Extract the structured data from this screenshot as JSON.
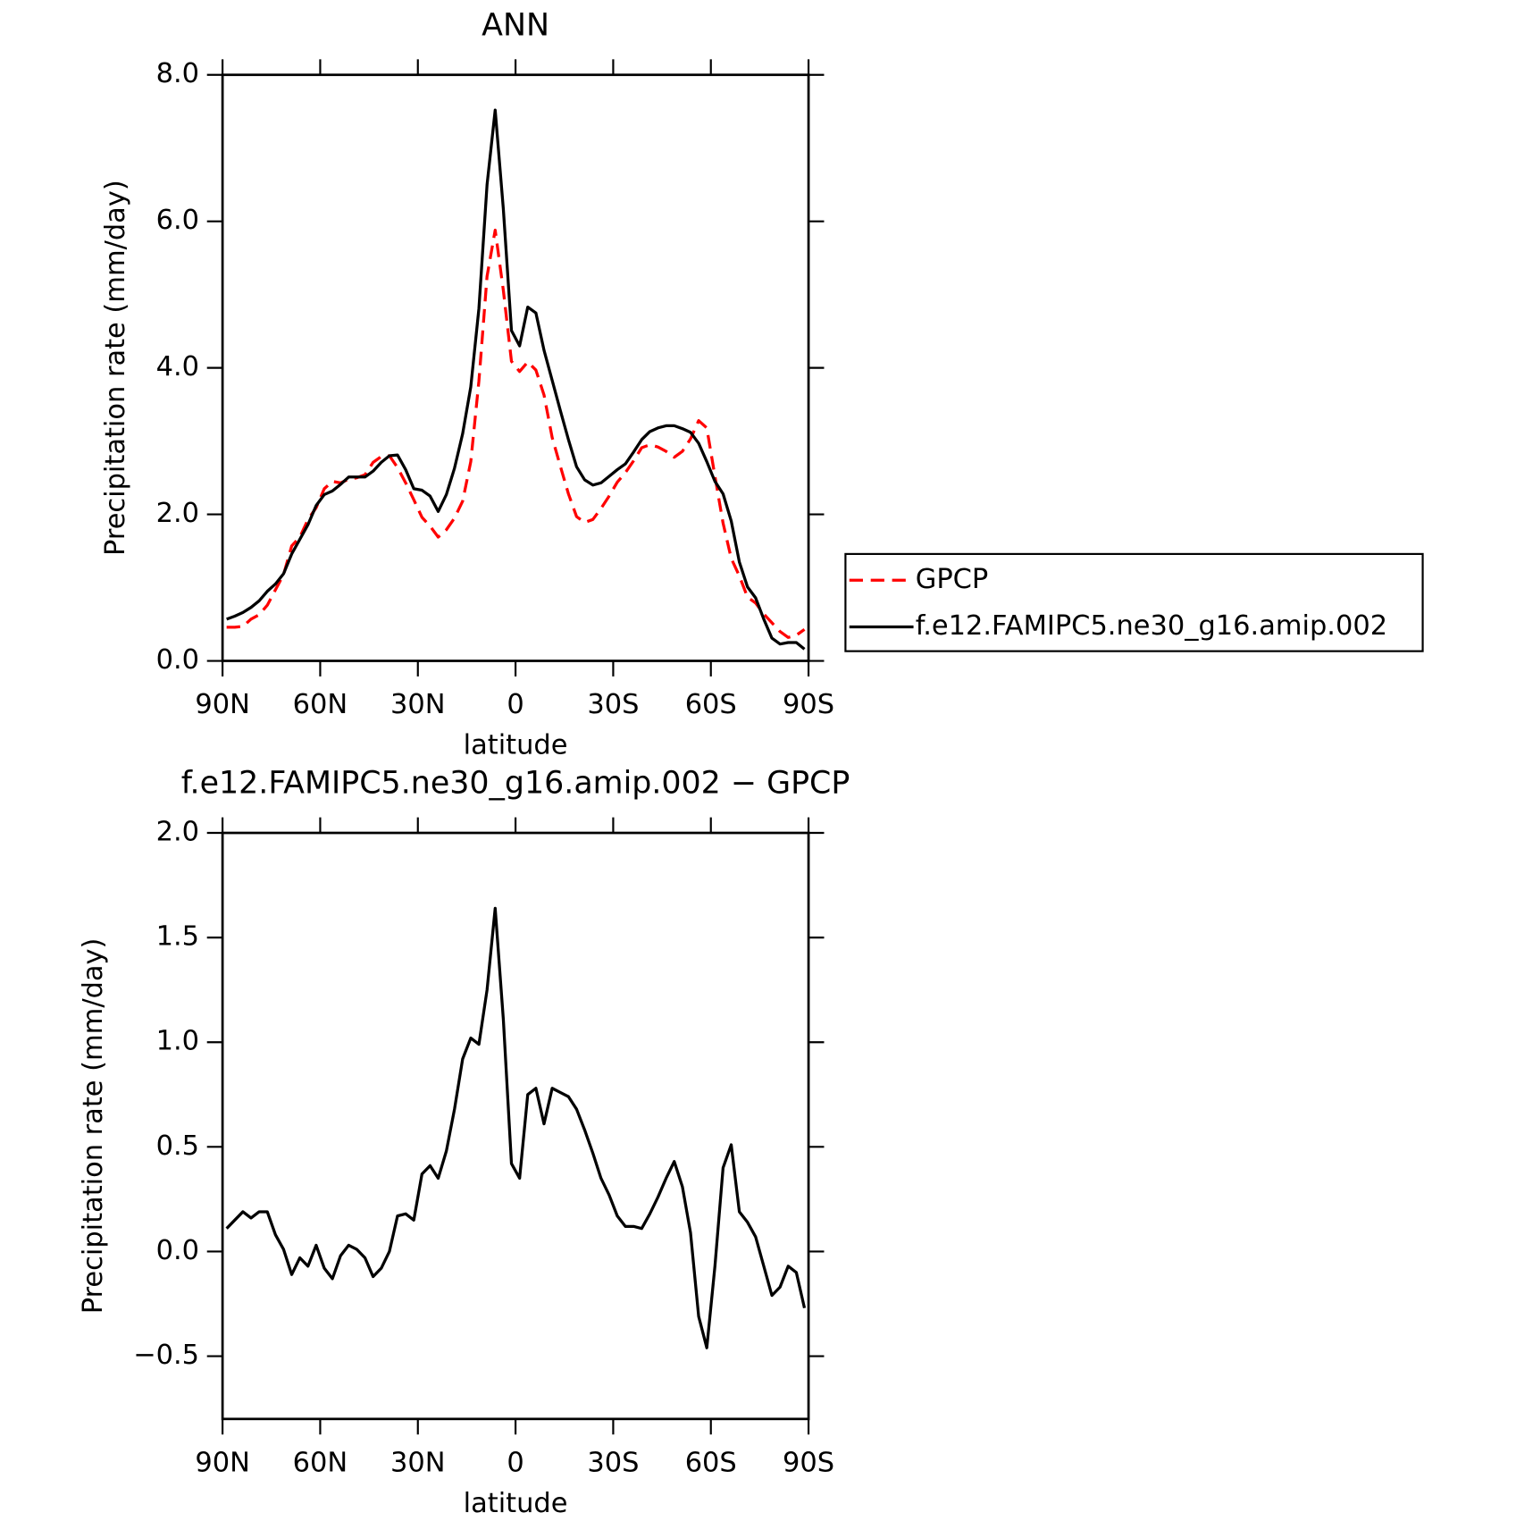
{
  "chart_data": [
    {
      "type": "line",
      "title": "ANN",
      "x_label": "latitude",
      "y_label": "Precipitation rate (mm/day)",
      "xlim": [
        90,
        -90
      ],
      "xticks": [
        {
          "value": 90,
          "label": "90N"
        },
        {
          "value": 60,
          "label": "60N"
        },
        {
          "value": 30,
          "label": "30N"
        },
        0,
        {
          "value": -30,
          "label": "30S"
        },
        {
          "value": -60,
          "label": "60S"
        },
        {
          "value": -90,
          "label": "90S"
        }
      ],
      "ylim": [
        0,
        8
      ],
      "yticks": [
        {
          "value": 0,
          "label": "0.0"
        },
        {
          "value": 2,
          "label": "2.0"
        },
        {
          "value": 4,
          "label": "4.0"
        },
        {
          "value": 6,
          "label": "6.0"
        },
        {
          "value": 8,
          "label": "8.0"
        }
      ],
      "legend": "right",
      "x": [
        88.75,
        86.25,
        83.75,
        81.25,
        78.75,
        76.25,
        73.75,
        71.25,
        68.75,
        66.25,
        63.75,
        61.25,
        58.75,
        56.25,
        53.75,
        51.25,
        48.75,
        46.25,
        43.75,
        41.25,
        38.75,
        36.25,
        33.75,
        31.25,
        28.75,
        26.25,
        23.75,
        21.25,
        18.75,
        16.25,
        13.75,
        11.25,
        8.75,
        6.25,
        3.75,
        1.25,
        -1.25,
        -3.75,
        -6.25,
        -8.75,
        -11.25,
        -13.75,
        -16.25,
        -18.75,
        -21.25,
        -23.75,
        -26.25,
        -28.75,
        -31.25,
        -33.75,
        -36.25,
        -38.75,
        -41.25,
        -43.75,
        -46.25,
        -48.75,
        -51.25,
        -53.75,
        -56.25,
        -58.75,
        -61.25,
        -63.75,
        -66.25,
        -68.75,
        -71.25,
        -73.75,
        -76.25,
        -78.75,
        -81.25,
        -83.75,
        -86.25,
        -88.75
      ],
      "series": [
        {
          "name": "GPCP",
          "color": "#ff0000",
          "line_style": "dashed",
          "values": [
            0.46,
            0.46,
            0.47,
            0.57,
            0.63,
            0.76,
            0.97,
            1.18,
            1.57,
            1.69,
            1.93,
            2.09,
            2.35,
            2.45,
            2.43,
            2.48,
            2.5,
            2.54,
            2.71,
            2.79,
            2.8,
            2.64,
            2.43,
            2.2,
            1.96,
            1.84,
            1.69,
            1.79,
            1.95,
            2.18,
            2.72,
            3.82,
            5.25,
            5.88,
            5.06,
            4.09,
            3.95,
            4.08,
            3.97,
            3.63,
            3.05,
            2.66,
            2.28,
            1.97,
            1.89,
            1.93,
            2.08,
            2.25,
            2.44,
            2.57,
            2.73,
            2.91,
            2.95,
            2.92,
            2.86,
            2.78,
            2.86,
            3.03,
            3.28,
            3.18,
            2.52,
            1.88,
            1.4,
            1.16,
            0.87,
            0.79,
            0.64,
            0.52,
            0.4,
            0.32,
            0.35,
            0.43
          ]
        },
        {
          "name": "f.e12.FAMIPC5.ne30_g16.amip.002",
          "color": "#000000",
          "line_style": "solid",
          "values": [
            0.57,
            0.61,
            0.66,
            0.73,
            0.82,
            0.95,
            1.05,
            1.19,
            1.46,
            1.66,
            1.86,
            2.12,
            2.27,
            2.32,
            2.41,
            2.51,
            2.51,
            2.51,
            2.59,
            2.71,
            2.8,
            2.81,
            2.61,
            2.35,
            2.33,
            2.25,
            2.04,
            2.27,
            2.63,
            3.1,
            3.74,
            4.81,
            6.5,
            7.52,
            6.17,
            4.51,
            4.3,
            4.83,
            4.75,
            4.24,
            3.83,
            3.42,
            3.02,
            2.65,
            2.47,
            2.4,
            2.43,
            2.52,
            2.61,
            2.69,
            2.85,
            3.02,
            3.13,
            3.18,
            3.21,
            3.21,
            3.17,
            3.12,
            2.97,
            2.72,
            2.45,
            2.28,
            1.91,
            1.35,
            1.01,
            0.86,
            0.57,
            0.31,
            0.23,
            0.25,
            0.25,
            0.16
          ]
        }
      ]
    },
    {
      "type": "line",
      "title": "f.e12.FAMIPC5.ne30_g16.amip.002 − GPCP",
      "x_label": "latitude",
      "y_label": "Precipitation rate (mm/day)",
      "xlim": [
        90,
        -90
      ],
      "xticks": [
        {
          "value": 90,
          "label": "90N"
        },
        {
          "value": 60,
          "label": "60N"
        },
        {
          "value": 30,
          "label": "30N"
        },
        0,
        {
          "value": -30,
          "label": "30S"
        },
        {
          "value": -60,
          "label": "60S"
        },
        {
          "value": -90,
          "label": "90S"
        }
      ],
      "ylim": [
        -0.8,
        2.0
      ],
      "yticks": [
        {
          "value": -0.5,
          "label": "−0.5"
        },
        {
          "value": 0,
          "label": "0.0"
        },
        0.5,
        {
          "value": 1,
          "label": "1.0"
        },
        1.5,
        {
          "value": 2,
          "label": "2.0"
        }
      ],
      "x": [
        88.75,
        86.25,
        83.75,
        81.25,
        78.75,
        76.25,
        73.75,
        71.25,
        68.75,
        66.25,
        63.75,
        61.25,
        58.75,
        56.25,
        53.75,
        51.25,
        48.75,
        46.25,
        43.75,
        41.25,
        38.75,
        36.25,
        33.75,
        31.25,
        28.75,
        26.25,
        23.75,
        21.25,
        18.75,
        16.25,
        13.75,
        11.25,
        8.75,
        6.25,
        3.75,
        1.25,
        -1.25,
        -3.75,
        -6.25,
        -8.75,
        -11.25,
        -13.75,
        -16.25,
        -18.75,
        -21.25,
        -23.75,
        -26.25,
        -28.75,
        -31.25,
        -33.75,
        -36.25,
        -38.75,
        -41.25,
        -43.75,
        -46.25,
        -48.75,
        -51.25,
        -53.75,
        -56.25,
        -58.75,
        -61.25,
        -63.75,
        -66.25,
        -68.75,
        -71.25,
        -73.75,
        -76.25,
        -78.75,
        -81.25,
        -83.75,
        -86.25,
        -88.75
      ],
      "series": [
        {
          "color": "#000000",
          "line_style": "solid",
          "values": [
            0.11,
            0.15,
            0.19,
            0.16,
            0.19,
            0.19,
            0.08,
            0.01,
            -0.11,
            -0.03,
            -0.07,
            0.03,
            -0.08,
            -0.13,
            -0.02,
            0.03,
            0.01,
            -0.03,
            -0.12,
            -0.08,
            0.0,
            0.17,
            0.18,
            0.15,
            0.37,
            0.41,
            0.35,
            0.48,
            0.68,
            0.92,
            1.02,
            0.99,
            1.25,
            1.64,
            1.11,
            0.42,
            0.35,
            0.75,
            0.78,
            0.61,
            0.78,
            0.76,
            0.74,
            0.68,
            0.58,
            0.47,
            0.35,
            0.27,
            0.17,
            0.12,
            0.12,
            0.11,
            0.18,
            0.26,
            0.35,
            0.43,
            0.31,
            0.09,
            -0.31,
            -0.46,
            -0.07,
            0.4,
            0.51,
            0.19,
            0.14,
            0.07,
            -0.07,
            -0.21,
            -0.17,
            -0.07,
            -0.1,
            -0.27
          ]
        }
      ]
    }
  ]
}
